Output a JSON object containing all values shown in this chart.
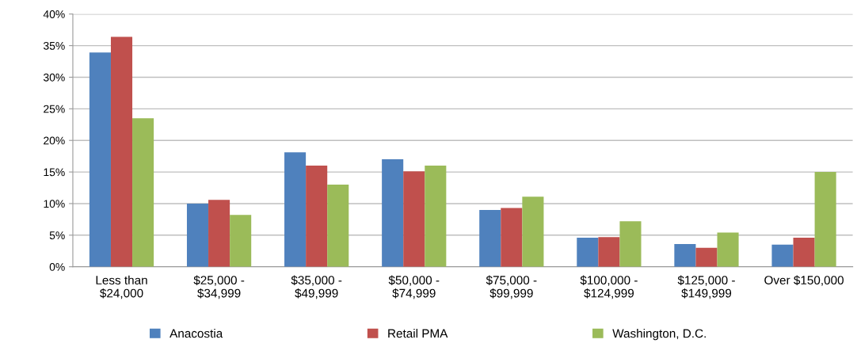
{
  "chart_data": {
    "type": "bar",
    "categories": [
      "Less than\n$24,000",
      "$25,000 -\n$34,999",
      "$35,000 -\n$49,999",
      "$50,000 -\n$74,999",
      "$75,000 -\n$99,999",
      "$100,000 -\n$124,999",
      "$125,000 -\n$149,999",
      "Over $150,000"
    ],
    "series": [
      {
        "name": "Anacostia",
        "color": "#4f81bd",
        "values": [
          33.9,
          10.0,
          18.1,
          17.0,
          9.0,
          4.6,
          3.6,
          3.5
        ]
      },
      {
        "name": "Retail PMA",
        "color": "#c0504d",
        "values": [
          36.4,
          10.6,
          16.0,
          15.1,
          9.3,
          4.7,
          3.0,
          4.6
        ]
      },
      {
        "name": "Washington, D.C.",
        "color": "#9bbb59",
        "values": [
          23.5,
          8.2,
          13.0,
          16.0,
          11.1,
          7.2,
          5.4,
          15.0
        ]
      }
    ],
    "ylim": [
      0,
      40
    ],
    "yticks": [
      {
        "value": 0,
        "label": "0%"
      },
      {
        "value": 5,
        "label": "5%"
      },
      {
        "value": 10,
        "label": "10%"
      },
      {
        "value": 15,
        "label": "15%"
      },
      {
        "value": 20,
        "label": "20%"
      },
      {
        "value": 25,
        "label": "25%"
      },
      {
        "value": 30,
        "label": "30%"
      },
      {
        "value": 35,
        "label": "35%"
      },
      {
        "value": 40,
        "label": "40%"
      }
    ],
    "grid": "y",
    "legend": "bottom"
  }
}
